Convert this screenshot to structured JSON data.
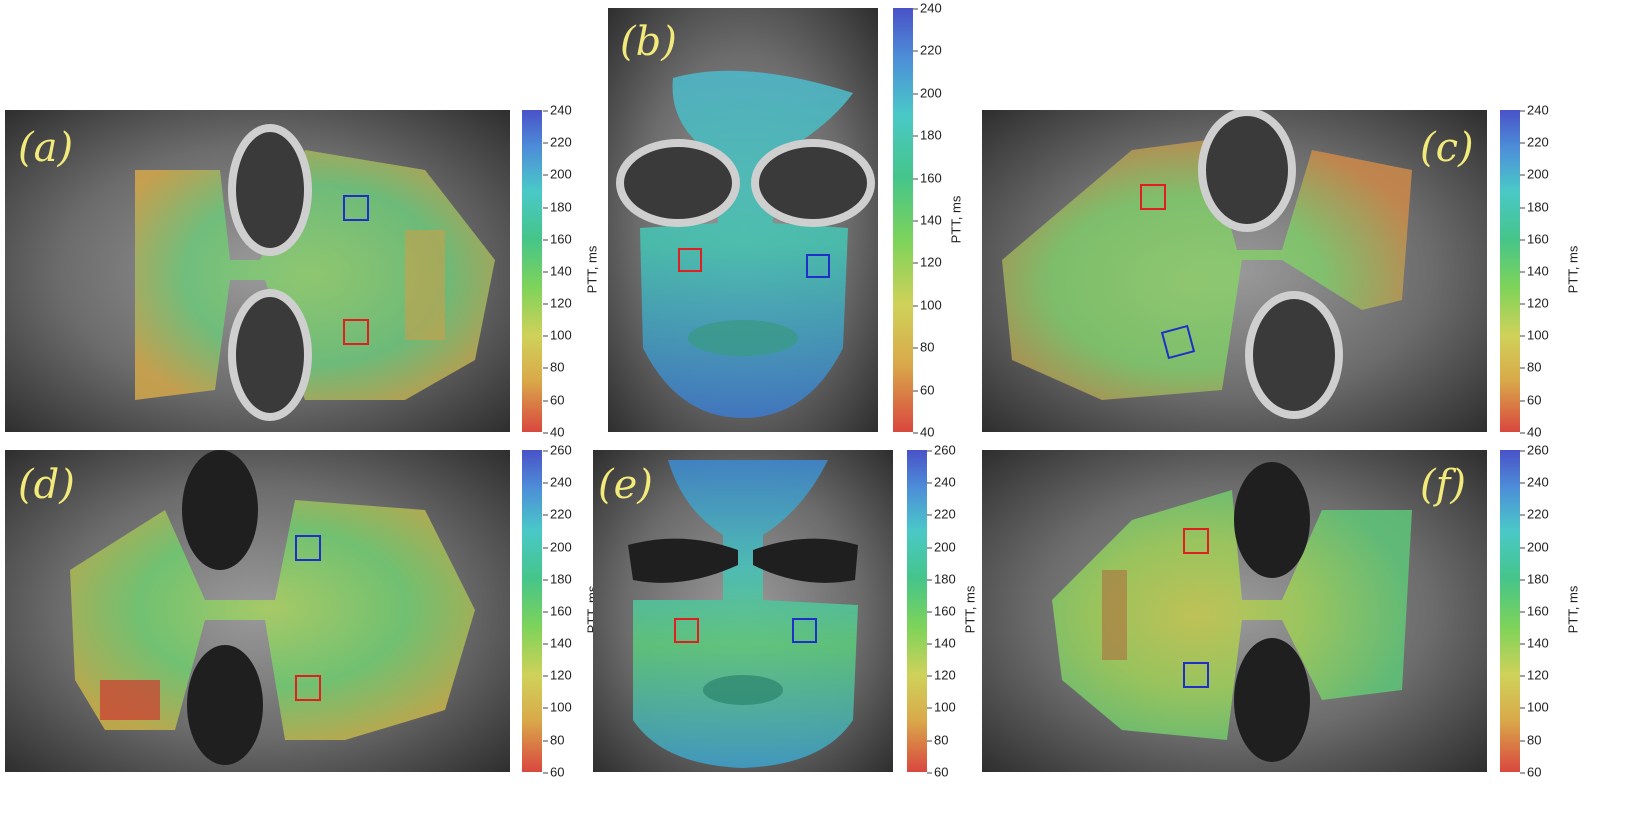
{
  "panels": [
    {
      "label": "(a)",
      "colorbar": {
        "title": "PTT, ms",
        "ticks": [
          "240",
          "220",
          "200",
          "180",
          "160",
          "140",
          "120",
          "100",
          "80",
          "60",
          "40"
        ]
      }
    },
    {
      "label": "(b)",
      "colorbar": {
        "title": "PTT, ms",
        "ticks": [
          "240",
          "220",
          "200",
          "180",
          "160",
          "140",
          "120",
          "100",
          "80",
          "60",
          "40"
        ]
      }
    },
    {
      "label": "(c)",
      "colorbar": {
        "title": "PTT, ms",
        "ticks": [
          "240",
          "220",
          "200",
          "180",
          "160",
          "140",
          "120",
          "100",
          "80",
          "60",
          "40"
        ]
      }
    },
    {
      "label": "(d)",
      "colorbar": {
        "title": "PTT, ms",
        "ticks": [
          "260",
          "240",
          "220",
          "200",
          "180",
          "160",
          "140",
          "120",
          "100",
          "80",
          "60"
        ]
      }
    },
    {
      "label": "(e)",
      "colorbar": {
        "title": "PTT, ms",
        "ticks": [
          "260",
          "240",
          "220",
          "200",
          "180",
          "160",
          "140",
          "120",
          "100",
          "80",
          "60"
        ]
      }
    },
    {
      "label": "(f)",
      "colorbar": {
        "title": "PTT, ms",
        "ticks": [
          "260",
          "240",
          "220",
          "200",
          "180",
          "160",
          "140",
          "120",
          "100",
          "80",
          "60"
        ]
      }
    }
  ],
  "colors": {
    "label_text": "#f2ea7a",
    "roi_red": "#e02020",
    "roi_blue": "#1f2fc8",
    "ptt_low": "#d9473f",
    "ptt_mid": "#7ed35a",
    "ptt_high": "#4a52c8"
  }
}
